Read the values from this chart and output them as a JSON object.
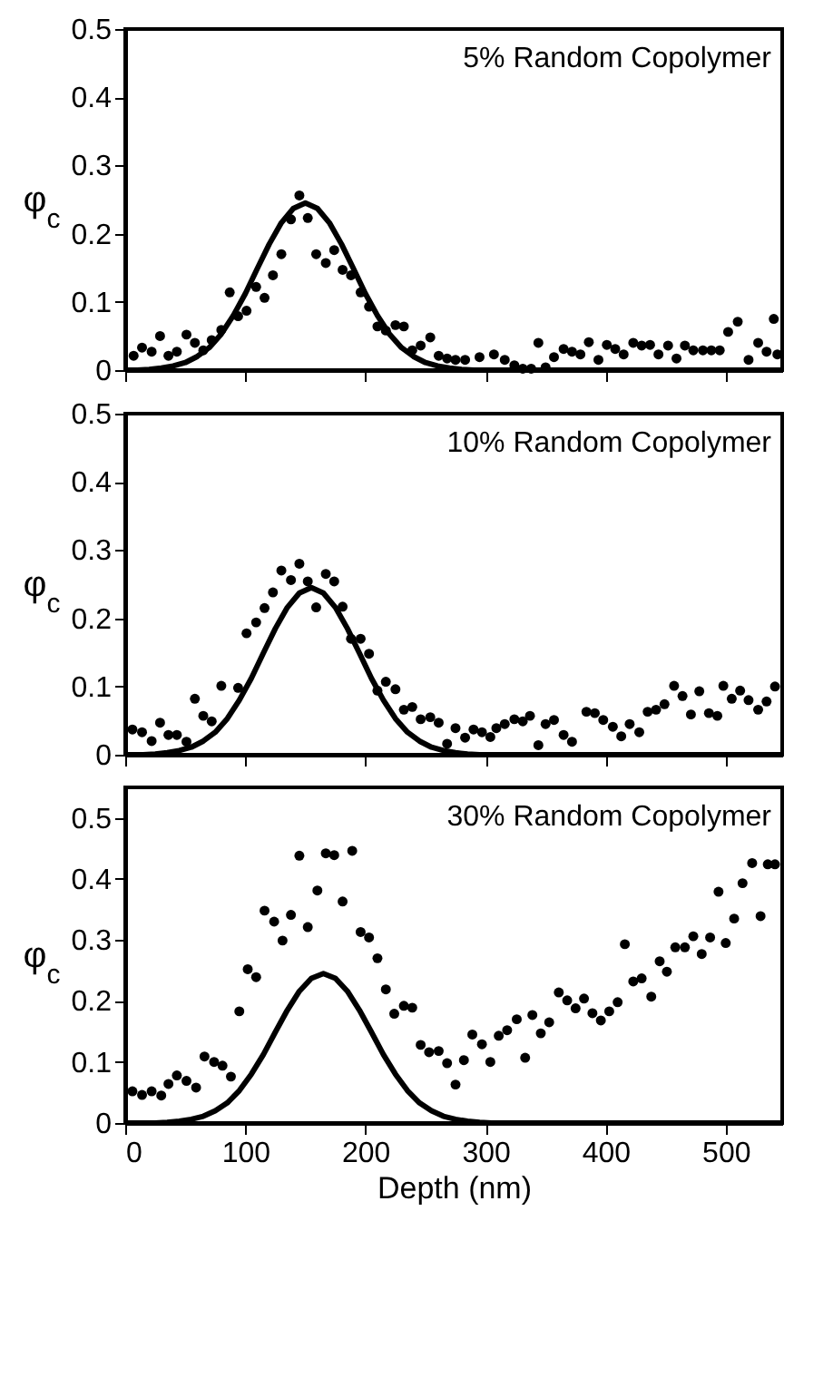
{
  "chart_data": [
    {
      "type": "scatter",
      "ylabel": "φ$_{c}$",
      "annotations": [
        "5% Random Copolymer"
      ],
      "xlim": [
        0,
        547
      ],
      "xticks": [
        0,
        100,
        200,
        300,
        400,
        500
      ],
      "ylim": [
        0,
        0.5
      ],
      "yticks": [
        0,
        0.1,
        0.2,
        0.3,
        0.4,
        0.5
      ],
      "tick_labels": "y",
      "series": [
        {
          "type": "scatter",
          "marker": "circle",
          "color": "#000000",
          "x": [
            7,
            14,
            22,
            29,
            36,
            43,
            51,
            58,
            65,
            72,
            80,
            87,
            94,
            101,
            109,
            116,
            123,
            130,
            138,
            145,
            152,
            159,
            167,
            174,
            181,
            188,
            196,
            203,
            210,
            217,
            225,
            232,
            239,
            246,
            254,
            261,
            268,
            275,
            283,
            295,
            307,
            316,
            324,
            331,
            338,
            344,
            350,
            357,
            365,
            372,
            379,
            386,
            394,
            401,
            408,
            415,
            423,
            430,
            437,
            444,
            452,
            459,
            466,
            473,
            481,
            488,
            495,
            502,
            510,
            519,
            527,
            534,
            540,
            543
          ],
          "values": [
            0.021,
            0.033,
            0.027,
            0.05,
            0.021,
            0.027,
            0.052,
            0.04,
            0.029,
            0.044,
            0.059,
            0.114,
            0.079,
            0.087,
            0.122,
            0.106,
            0.139,
            0.17,
            0.221,
            0.256,
            0.223,
            0.17,
            0.157,
            0.176,
            0.147,
            0.139,
            0.114,
            0.093,
            0.064,
            0.058,
            0.066,
            0.064,
            0.029,
            0.036,
            0.048,
            0.021,
            0.017,
            0.015,
            0.015,
            0.019,
            0.023,
            0.015,
            0.007,
            0.002,
            0.002,
            0.04,
            0.004,
            0.019,
            0.031,
            0.027,
            0.023,
            0.041,
            0.015,
            0.037,
            0.031,
            0.023,
            0.04,
            0.036,
            0.037,
            0.023,
            0.036,
            0.017,
            0.036,
            0.029,
            0.029,
            0.029,
            0.029,
            0.056,
            0.071,
            0.015,
            0.04,
            0.027,
            0.075,
            0.023
          ]
        },
        {
          "type": "line",
          "color": "#000000",
          "x": [
            0,
            10,
            20,
            30,
            40,
            50,
            60,
            70,
            80,
            90,
            100,
            110,
            120,
            130,
            140,
            150,
            160,
            170,
            180,
            190,
            200,
            210,
            220,
            230,
            240,
            250,
            260,
            270,
            280,
            290,
            300,
            400,
            547
          ],
          "values": [
            0,
            0,
            0.001,
            0.003,
            0.006,
            0.011,
            0.02,
            0.033,
            0.053,
            0.08,
            0.112,
            0.149,
            0.185,
            0.216,
            0.237,
            0.245,
            0.237,
            0.216,
            0.185,
            0.149,
            0.112,
            0.08,
            0.053,
            0.033,
            0.02,
            0.011,
            0.006,
            0.003,
            0.001,
            0,
            0,
            0,
            0
          ]
        }
      ]
    },
    {
      "type": "scatter",
      "ylabel": "φ$_{c}$",
      "annotations": [
        "10% Random Copolymer"
      ],
      "xlim": [
        0,
        547
      ],
      "xticks": [
        0,
        100,
        200,
        300,
        400,
        500
      ],
      "ylim": [
        0,
        0.5
      ],
      "yticks": [
        0,
        0.1,
        0.2,
        0.3,
        0.4,
        0.5
      ],
      "tick_labels": "y",
      "series": [
        {
          "type": "scatter",
          "marker": "circle",
          "color": "#000000",
          "x": [
            6,
            14,
            22,
            29,
            36,
            43,
            51,
            58,
            65,
            72,
            80,
            94,
            101,
            109,
            116,
            123,
            130,
            138,
            145,
            152,
            159,
            167,
            174,
            181,
            188,
            196,
            203,
            210,
            217,
            225,
            232,
            239,
            246,
            254,
            261,
            268,
            275,
            283,
            290,
            297,
            304,
            309,
            316,
            324,
            331,
            337,
            344,
            350,
            357,
            365,
            372,
            384,
            391,
            398,
            406,
            413,
            420,
            428,
            435,
            442,
            449,
            457,
            464,
            471,
            478,
            486,
            493,
            498,
            505,
            512,
            519,
            527,
            534,
            541
          ],
          "values": [
            0.037,
            0.033,
            0.02,
            0.047,
            0.029,
            0.029,
            0.019,
            0.082,
            0.057,
            0.049,
            0.101,
            0.098,
            0.178,
            0.194,
            0.215,
            0.238,
            0.27,
            0.256,
            0.28,
            0.254,
            0.216,
            0.265,
            0.254,
            0.217,
            0.17,
            0.17,
            0.148,
            0.094,
            0.107,
            0.096,
            0.066,
            0.07,
            0.052,
            0.055,
            0.047,
            0.016,
            0.039,
            0.025,
            0.037,
            0.033,
            0.026,
            0.039,
            0.045,
            0.052,
            0.049,
            0.057,
            0.014,
            0.045,
            0.051,
            0.029,
            0.019,
            0.063,
            0.061,
            0.051,
            0.041,
            0.027,
            0.045,
            0.033,
            0.063,
            0.066,
            0.074,
            0.101,
            0.086,
            0.059,
            0.093,
            0.061,
            0.057,
            0.101,
            0.082,
            0.094,
            0.08,
            0.066,
            0.078,
            0.1
          ]
        },
        {
          "type": "line",
          "color": "#000000",
          "x": [
            0,
            5,
            15,
            25,
            35,
            45,
            55,
            65,
            75,
            85,
            95,
            105,
            115,
            125,
            135,
            145,
            155,
            165,
            175,
            185,
            195,
            205,
            215,
            225,
            235,
            245,
            255,
            265,
            275,
            285,
            295,
            400,
            547
          ],
          "values": [
            0,
            0,
            0,
            0.001,
            0.003,
            0.006,
            0.011,
            0.02,
            0.033,
            0.053,
            0.08,
            0.112,
            0.149,
            0.185,
            0.216,
            0.237,
            0.245,
            0.237,
            0.216,
            0.185,
            0.149,
            0.112,
            0.08,
            0.053,
            0.033,
            0.02,
            0.011,
            0.006,
            0.003,
            0.001,
            0,
            0,
            0
          ]
        }
      ]
    },
    {
      "type": "scatter",
      "xlabel": "Depth (nm)",
      "ylabel": "φ$_{c}$",
      "annotations": [
        "30% Random Copolymer"
      ],
      "xlim": [
        0,
        547
      ],
      "xticks": [
        0,
        100,
        200,
        300,
        400,
        500
      ],
      "ylim": [
        0,
        0.55
      ],
      "yticks": [
        0,
        0.1,
        0.2,
        0.3,
        0.4,
        0.5
      ],
      "series": [
        {
          "type": "scatter",
          "marker": "circle",
          "color": "#000000",
          "x": [
            6,
            14,
            22,
            30,
            36,
            43,
            51,
            59,
            66,
            74,
            81,
            88,
            95,
            102,
            109,
            116,
            124,
            131,
            138,
            145,
            152,
            160,
            167,
            174,
            181,
            189,
            196,
            203,
            210,
            217,
            224,
            232,
            239,
            246,
            253,
            261,
            268,
            275,
            282,
            289,
            297,
            304,
            311,
            318,
            326,
            333,
            339,
            346,
            353,
            361,
            368,
            375,
            382,
            389,
            396,
            403,
            410,
            416,
            423,
            430,
            438,
            445,
            451,
            458,
            466,
            473,
            480,
            487,
            494,
            500,
            507,
            514,
            522,
            529,
            535,
            541
          ],
          "values": [
            0.052,
            0.046,
            0.052,
            0.045,
            0.064,
            0.078,
            0.069,
            0.058,
            0.109,
            0.1,
            0.094,
            0.076,
            0.183,
            0.252,
            0.239,
            0.348,
            0.33,
            0.299,
            0.341,
            0.438,
            0.321,
            0.381,
            0.442,
            0.439,
            0.363,
            0.446,
            0.313,
            0.304,
            0.27,
            0.219,
            0.179,
            0.192,
            0.189,
            0.128,
            0.116,
            0.118,
            0.098,
            0.063,
            0.103,
            0.145,
            0.129,
            0.1,
            0.143,
            0.152,
            0.17,
            0.107,
            0.177,
            0.147,
            0.165,
            0.214,
            0.201,
            0.188,
            0.204,
            0.18,
            0.168,
            0.183,
            0.198,
            0.293,
            0.232,
            0.237,
            0.207,
            0.265,
            0.248,
            0.288,
            0.288,
            0.306,
            0.277,
            0.304,
            0.379,
            0.295,
            0.335,
            0.393,
            0.426,
            0.339,
            0.424,
            0.424
          ]
        },
        {
          "type": "line",
          "color": "#000000",
          "x": [
            0,
            15,
            25,
            35,
            45,
            55,
            65,
            75,
            85,
            95,
            105,
            115,
            125,
            135,
            145,
            155,
            165,
            175,
            185,
            195,
            205,
            215,
            225,
            235,
            245,
            255,
            265,
            275,
            285,
            295,
            305,
            315,
            400,
            547
          ],
          "values": [
            0,
            0,
            0,
            0.001,
            0.003,
            0.006,
            0.011,
            0.02,
            0.033,
            0.053,
            0.08,
            0.112,
            0.149,
            0.185,
            0.216,
            0.237,
            0.245,
            0.237,
            0.216,
            0.185,
            0.149,
            0.112,
            0.08,
            0.053,
            0.033,
            0.02,
            0.011,
            0.006,
            0.003,
            0.001,
            0,
            0,
            0,
            0
          ]
        }
      ]
    }
  ]
}
